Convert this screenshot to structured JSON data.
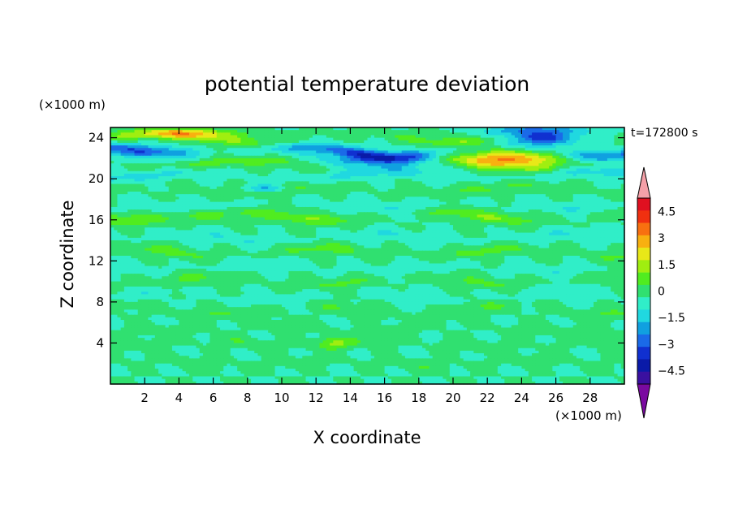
{
  "chart_data": {
    "type": "heatmap",
    "title": "potential temperature deviation",
    "xlabel": "X coordinate",
    "ylabel": "Z coordinate",
    "x_unit": "(×1000 m)",
    "y_unit": "(×1000 m)",
    "time_label": "t=172800 s",
    "xlim": [
      0,
      30
    ],
    "ylim": [
      0,
      25
    ],
    "x_ticks": [
      "2",
      "4",
      "6",
      "8",
      "10",
      "12",
      "14",
      "16",
      "18",
      "20",
      "22",
      "24",
      "26",
      "28"
    ],
    "y_ticks": [
      "4",
      "8",
      "12",
      "16",
      "20",
      "24"
    ],
    "colorbar": {
      "levels": [
        -5.25,
        -4.5,
        -3.75,
        -3,
        -2.25,
        -1.5,
        -0.75,
        0,
        0.75,
        1.5,
        2.25,
        3,
        3.75,
        4.5,
        5.25
      ],
      "tick_labels": [
        "4.5",
        "3",
        "1.5",
        "0",
        "−1.5",
        "−3",
        "−4.5"
      ],
      "tick_values": [
        4.5,
        3,
        1.5,
        0,
        -1.5,
        -3,
        -4.5
      ],
      "colors": [
        "#7a0aa0",
        "#3a10a0",
        "#0a1aa8",
        "#1030d0",
        "#1a6ae8",
        "#10a0e0",
        "#20d8e0",
        "#30eec8",
        "#30e070",
        "#50ec20",
        "#a0ee10",
        "#e8e818",
        "#f8b010",
        "#f87010",
        "#f03010",
        "#e01020",
        "#f4a0a8"
      ]
    },
    "bands": [
      {
        "z": 24.0,
        "amp": 1.6
      },
      {
        "z": 22.6,
        "amp": -2.6
      },
      {
        "z": 21.4,
        "amp": 1.4
      },
      {
        "z": 20.3,
        "amp": -1.2
      },
      {
        "z": 19.0,
        "amp": 0.9
      },
      {
        "z": 17.5,
        "amp": -0.8
      },
      {
        "z": 16.4,
        "amp": 1.5
      },
      {
        "z": 14.2,
        "amp": -0.7
      },
      {
        "z": 12.8,
        "amp": 1.1
      },
      {
        "z": 11.4,
        "amp": -0.6
      },
      {
        "z": 10.1,
        "amp": 0.9
      },
      {
        "z": 8.6,
        "amp": -0.5
      },
      {
        "z": 7.2,
        "amp": 0.8
      },
      {
        "z": 5.6,
        "amp": 0.4
      },
      {
        "z": 4.0,
        "amp": 0.6
      },
      {
        "z": 2.0,
        "amp": 0.5
      }
    ],
    "anomalies": [
      {
        "x": 25.0,
        "z": 24.3,
        "amp": -4.6,
        "rx": 2.5,
        "rz": 0.9
      },
      {
        "x": 23.5,
        "z": 22.0,
        "amp": 3.6,
        "rx": 3.0,
        "rz": 0.8
      },
      {
        "x": 16.0,
        "z": 21.8,
        "amp": -2.4,
        "rx": 3.5,
        "rz": 0.7
      },
      {
        "x": 9.0,
        "z": 19.0,
        "amp": -2.0,
        "rx": 1.2,
        "rz": 0.4
      },
      {
        "x": 2.5,
        "z": 22.6,
        "amp": -1.6,
        "rx": 2.5,
        "rz": 0.6
      },
      {
        "x": 4.5,
        "z": 24.4,
        "amp": 2.2,
        "rx": 3.0,
        "rz": 0.5
      },
      {
        "x": 6.0,
        "z": 16.5,
        "amp": 1.0,
        "rx": 2.0,
        "rz": 0.7
      },
      {
        "x": 13.0,
        "z": 4.0,
        "amp": 1.4,
        "rx": 1.0,
        "rz": 0.6
      }
    ]
  }
}
